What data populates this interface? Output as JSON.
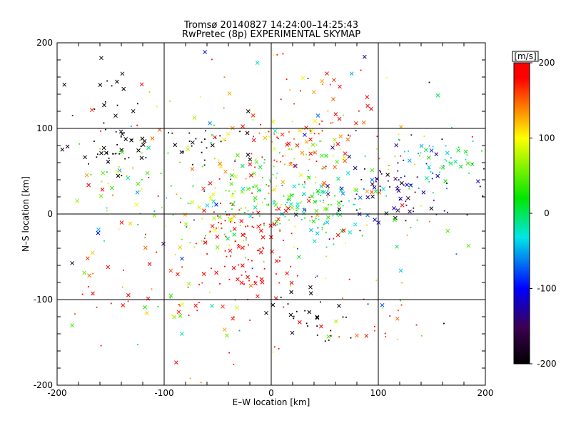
{
  "chart_data": {
    "type": "scatter",
    "title": "Tromsø 20140827 14:24:00–14:25:43",
    "subtitle": "RwPretec (8p) EXPERIMENTAL SKYMAP",
    "xlabel": "E–W location [km]",
    "ylabel": "N–S location [km]",
    "xlim": [
      -200,
      200
    ],
    "ylim": [
      -200,
      200
    ],
    "x_ticks": [
      -200,
      -100,
      0,
      100,
      200
    ],
    "y_ticks": [
      -200,
      -100,
      0,
      100,
      200
    ],
    "grid": true,
    "markers": [
      "x",
      "dot"
    ],
    "colorbar": {
      "label": "[m/s]",
      "range": [
        -200,
        200
      ],
      "ticks": [
        200,
        100,
        0,
        -100,
        -200
      ],
      "colors": [
        "#000000",
        "#3c0050",
        "#0000ff",
        "#00e6e6",
        "#00e600",
        "#ffff00",
        "#ff0000"
      ]
    },
    "clusters": [
      {
        "cx": -150,
        "cy": 80,
        "sx": 25,
        "sy": 15,
        "n": 40,
        "v": -200,
        "vs": 10
      },
      {
        "cx": -60,
        "cy": 80,
        "sx": 20,
        "sy": 12,
        "n": 28,
        "v": -200,
        "vs": 15
      },
      {
        "cx": -160,
        "cy": 130,
        "sx": 20,
        "sy": 30,
        "n": 18,
        "v": -190,
        "vs": 20
      },
      {
        "cx": 40,
        "cy": -120,
        "sx": 20,
        "sy": 15,
        "n": 30,
        "v": -200,
        "vs": 10
      },
      {
        "cx": 120,
        "cy": 30,
        "sx": 40,
        "sy": 25,
        "n": 100,
        "v": -150,
        "vs": 50
      },
      {
        "cx": 155,
        "cy": 60,
        "sx": 25,
        "sy": 20,
        "n": 45,
        "v": -20,
        "vs": 20
      },
      {
        "cx": 30,
        "cy": 10,
        "sx": 30,
        "sy": 20,
        "n": 110,
        "v": -10,
        "vs": 25
      },
      {
        "cx": -25,
        "cy": 10,
        "sx": 35,
        "sy": 25,
        "n": 80,
        "v": 40,
        "vs": 40
      },
      {
        "cx": -20,
        "cy": -40,
        "sx": 25,
        "sy": 35,
        "n": 110,
        "v": 195,
        "vs": 10
      },
      {
        "cx": 20,
        "cy": 80,
        "sx": 35,
        "sy": 25,
        "n": 90,
        "v": 120,
        "vs": 60
      },
      {
        "cx": -100,
        "cy": 40,
        "sx": 40,
        "sy": 45,
        "n": 70,
        "v": 60,
        "vs": 80
      },
      {
        "cx": 30,
        "cy": 120,
        "sx": 40,
        "sy": 30,
        "n": 40,
        "v": 170,
        "vs": 40
      },
      {
        "cx": 0,
        "cy": 0,
        "sx": 110,
        "sy": 100,
        "n": 200,
        "v": 80,
        "vs": 120
      },
      {
        "cx": -150,
        "cy": -80,
        "sx": 25,
        "sy": 30,
        "n": 18,
        "v": 180,
        "vs": 40
      },
      {
        "cx": 100,
        "cy": -130,
        "sx": 30,
        "sy": 25,
        "n": 14,
        "v": 170,
        "vs": 50
      },
      {
        "cx": -80,
        "cy": -100,
        "sx": 40,
        "sy": 40,
        "n": 25,
        "v": 120,
        "vs": 100
      }
    ],
    "seed": 20140827
  }
}
